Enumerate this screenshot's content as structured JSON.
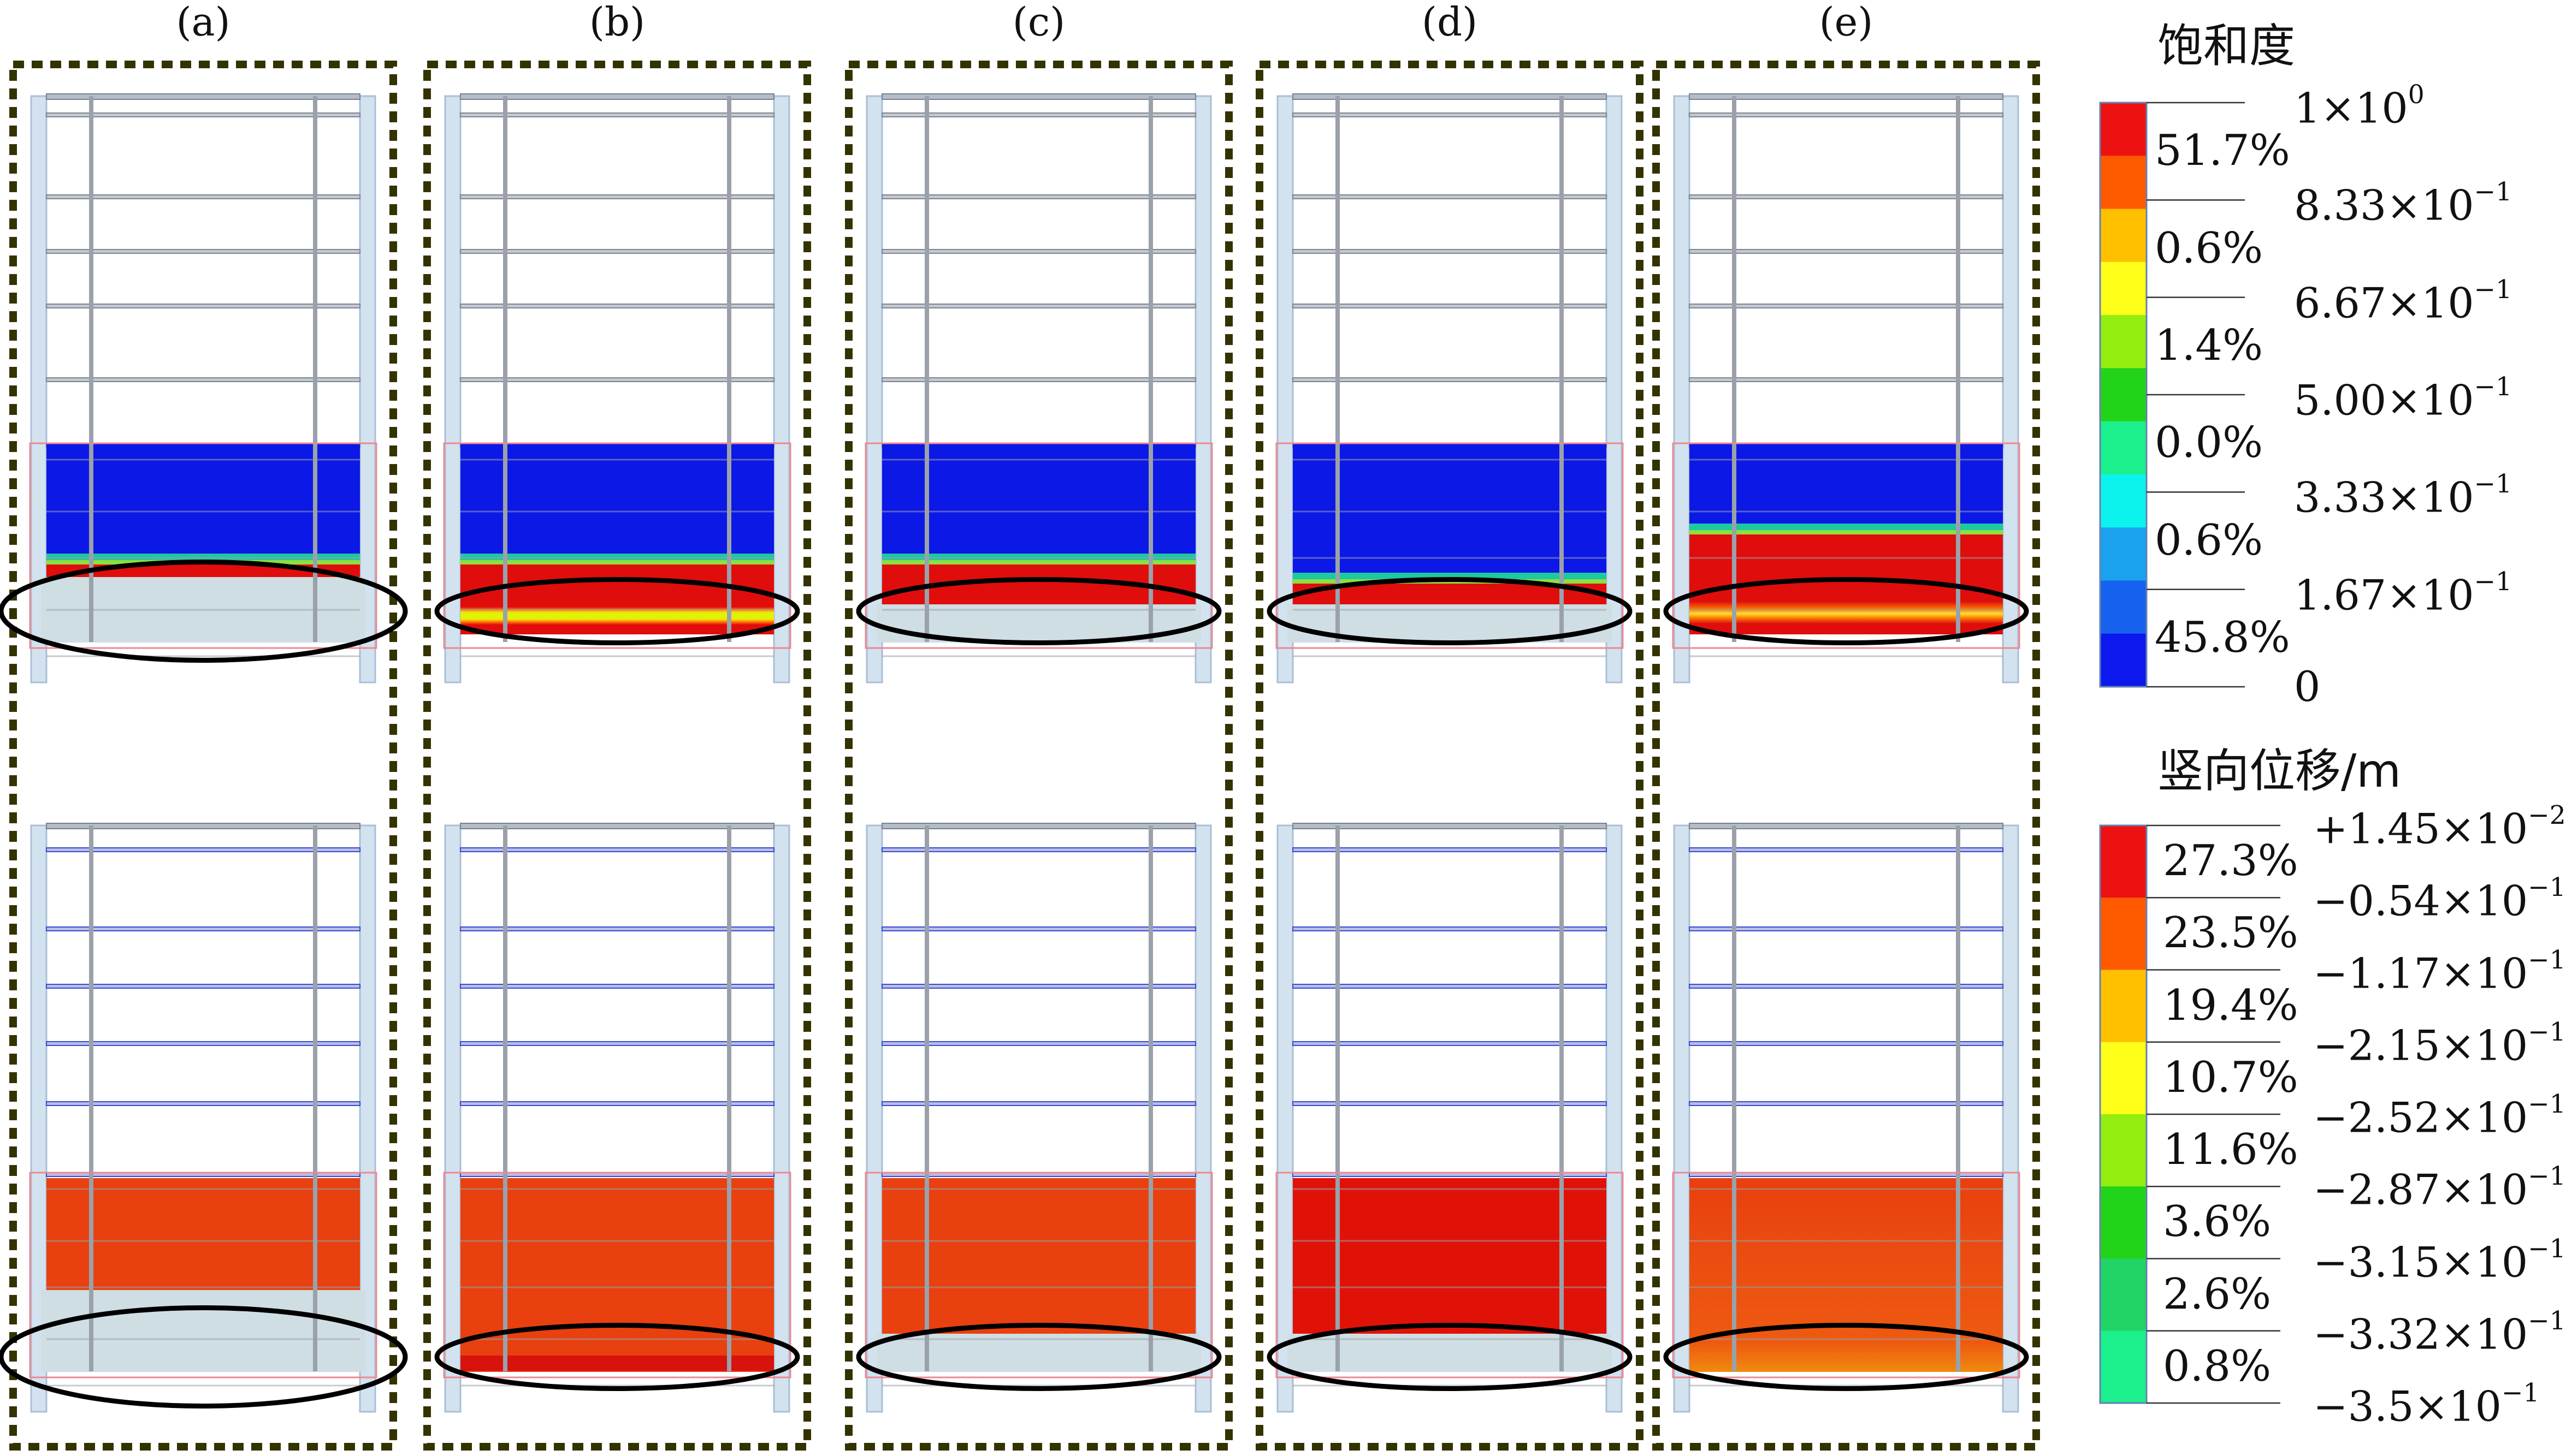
{
  "panels": [
    {
      "label": "(a)",
      "variant": "a"
    },
    {
      "label": "(b)",
      "variant": "b"
    },
    {
      "label": "(c)",
      "variant": "c"
    },
    {
      "label": "(d)",
      "variant": "d"
    },
    {
      "label": "(e)",
      "variant": "e"
    }
  ],
  "legend_saturation": {
    "title": "饱和度",
    "colors": [
      "#ee1111",
      "#ff5a00",
      "#ffc000",
      "#ffff1a",
      "#93ee10",
      "#22d419",
      "#1cf08c",
      "#0cf3ee",
      "#1aa2ee",
      "#1662ee",
      "#0b18ee"
    ],
    "percents": [
      "51.7%",
      "0.6%",
      "1.4%",
      "0.0%",
      "0.6%",
      "45.8%"
    ],
    "values": [
      {
        "base": "1×10",
        "exp": "0"
      },
      {
        "base": "8.33×10",
        "exp": "−1"
      },
      {
        "base": "6.67×10",
        "exp": "−1"
      },
      {
        "base": "5.00×10",
        "exp": "−1"
      },
      {
        "base": "3.33×10",
        "exp": "−1"
      },
      {
        "base": "1.67×10",
        "exp": "−1"
      },
      {
        "base": "0",
        "exp": ""
      }
    ]
  },
  "legend_displacement": {
    "title": "竖向位移/m",
    "colors": [
      "#ee1111",
      "#ff5a00",
      "#ffc000",
      "#ffff1a",
      "#93ee10",
      "#22d419",
      "#22d466",
      "#1cf08c"
    ],
    "percents": [
      "27.3%",
      "23.5%",
      "19.4%",
      "10.7%",
      "11.6%",
      "3.6%",
      "2.6%",
      "0.8%"
    ],
    "values": [
      {
        "base": "+1.45×10",
        "exp": "−2"
      },
      {
        "base": "−0.54×10",
        "exp": "−1"
      },
      {
        "base": "−1.17×10",
        "exp": "−1"
      },
      {
        "base": "−2.15×10",
        "exp": "−1"
      },
      {
        "base": "−2.52×10",
        "exp": "−1"
      },
      {
        "base": "−2.87×10",
        "exp": "−1"
      },
      {
        "base": "−3.15×10",
        "exp": "−1"
      },
      {
        "base": "−3.32×10",
        "exp": "−1"
      },
      {
        "base": "−3.5×10",
        "exp": "−1"
      }
    ]
  },
  "colors": {
    "frame_border": "#333300",
    "water_blue": "#0b18e6",
    "wet_red": "#e00d0d",
    "disp_orange": "#e8400f",
    "disp_red": "#e01208",
    "grey_base": "#cfdee3"
  }
}
